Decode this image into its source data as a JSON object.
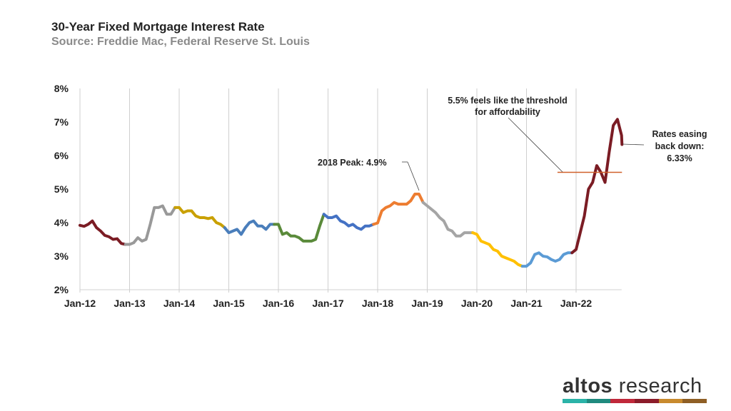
{
  "header": {
    "title": "30-Year Fixed Mortgage Interest Rate",
    "subtitle": "Source: Freddie Mac, Federal Reserve St. Louis"
  },
  "logo": {
    "bold": "altos",
    "rest": "research",
    "colors": [
      "#2bb3a8",
      "#1f8a7e",
      "#c0283a",
      "#8c1c2a",
      "#c88a2e",
      "#8f5f25"
    ]
  },
  "chart_data": {
    "type": "line",
    "title": "30-Year Fixed Mortgage Interest Rate",
    "ylim": [
      2,
      8
    ],
    "yticks": [
      "2%",
      "3%",
      "4%",
      "5%",
      "6%",
      "7%",
      "8%"
    ],
    "yvalues": [
      2,
      3,
      4,
      5,
      6,
      7,
      8
    ],
    "xticks": [
      "Jan-12",
      "Jan-13",
      "Jan-14",
      "Jan-15",
      "Jan-16",
      "Jan-17",
      "Jan-18",
      "Jan-19",
      "Jan-20",
      "Jan-21",
      "Jan-22"
    ],
    "grid": "vertical",
    "year_colors": {
      "2012": "#7b1c24",
      "2013": "#999999",
      "2014": "#c9a000",
      "2015": "#4a7ebb",
      "2016": "#5a8a3a",
      "2017": "#4472c4",
      "2018": "#ed7d31",
      "2019": "#a5a5a5",
      "2020": "#ffc000",
      "2021": "#5b9bd5",
      "2022": "#7b1c24"
    },
    "series": [
      {
        "year": "2012",
        "values": [
          3.92,
          3.89,
          3.95,
          4.05,
          3.85,
          3.75,
          3.62,
          3.58,
          3.5,
          3.52,
          3.38,
          3.35
        ]
      },
      {
        "year": "2013",
        "values": [
          3.35,
          3.4,
          3.55,
          3.45,
          3.5,
          3.95,
          4.45,
          4.45,
          4.5,
          4.25,
          4.25,
          4.45
        ]
      },
      {
        "year": "2014",
        "values": [
          4.45,
          4.3,
          4.35,
          4.35,
          4.2,
          4.15,
          4.15,
          4.12,
          4.15,
          4.0,
          3.95,
          3.85
        ]
      },
      {
        "year": "2015",
        "values": [
          3.7,
          3.75,
          3.8,
          3.65,
          3.85,
          4.0,
          4.05,
          3.9,
          3.9,
          3.8,
          3.95,
          3.95
        ]
      },
      {
        "year": "2016",
        "values": [
          3.95,
          3.65,
          3.7,
          3.6,
          3.6,
          3.55,
          3.45,
          3.45,
          3.45,
          3.5,
          3.9,
          4.25
        ]
      },
      {
        "year": "2017",
        "values": [
          4.15,
          4.15,
          4.2,
          4.05,
          4.0,
          3.9,
          3.95,
          3.85,
          3.8,
          3.9,
          3.9,
          3.95
        ]
      },
      {
        "year": "2018",
        "values": [
          3.99,
          4.35,
          4.45,
          4.5,
          4.6,
          4.55,
          4.55,
          4.55,
          4.65,
          4.85,
          4.85,
          4.6
        ]
      },
      {
        "year": "2019",
        "values": [
          4.5,
          4.4,
          4.3,
          4.15,
          4.05,
          3.8,
          3.75,
          3.6,
          3.6,
          3.7,
          3.7,
          3.7
        ]
      },
      {
        "year": "2020",
        "values": [
          3.65,
          3.45,
          3.4,
          3.35,
          3.2,
          3.15,
          3.0,
          2.95,
          2.9,
          2.85,
          2.75,
          2.7
        ]
      },
      {
        "year": "2021",
        "values": [
          2.7,
          2.8,
          3.05,
          3.1,
          3.0,
          2.98,
          2.9,
          2.85,
          2.9,
          3.05,
          3.1,
          3.1
        ]
      },
      {
        "year": "2022",
        "values": [
          3.2,
          3.7,
          4.2,
          5.0,
          5.2,
          5.7,
          5.5,
          5.2,
          6.1,
          6.9,
          7.08,
          6.6,
          6.33
        ]
      }
    ],
    "threshold": {
      "value": 5.5,
      "color": "#d0602a",
      "from": "Aug-21"
    },
    "annotations": {
      "peak_2018": "2018 Peak: 4.9%",
      "threshold_1": "5.5% feels like the threshold",
      "threshold_2": "for affordability",
      "easing_1": "Rates easing",
      "easing_2": "back down:",
      "easing_3": "6.33%"
    }
  }
}
